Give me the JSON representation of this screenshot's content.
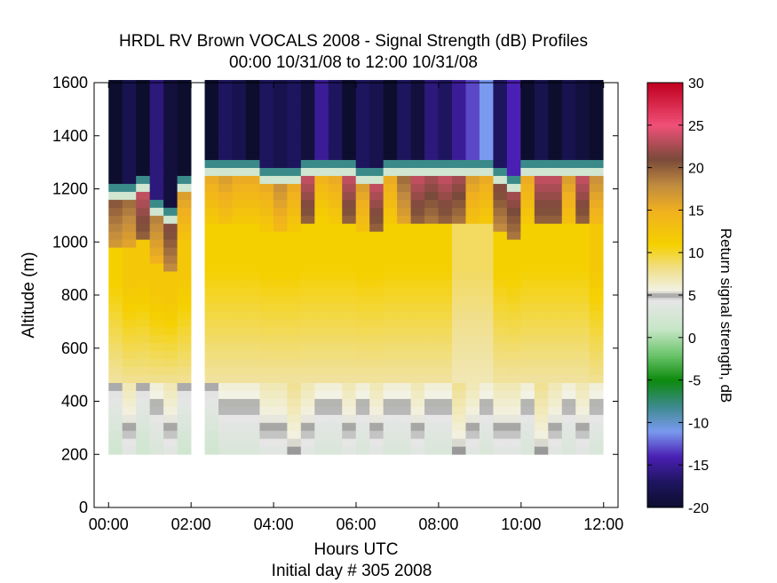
{
  "chart_data": {
    "type": "heatmap",
    "title": "HRDL RV Brown VOCALS 2008 - Signal Strength (dB) Profiles",
    "subtitle": "00:00 10/31/08 to 12:00 10/31/08",
    "xlabel": "Hours UTC",
    "xlabel2": "Initial day # 305  2008",
    "ylabel": "Altitude (m)",
    "colorbar_label": "Return signal strength, dB",
    "x_ticks": [
      "00:00",
      "02:00",
      "04:00",
      "06:00",
      "08:00",
      "10:00",
      "12:00"
    ],
    "x_tick_values": [
      0,
      2,
      4,
      6,
      8,
      10,
      12
    ],
    "xlim": [
      -0.35,
      12.35
    ],
    "y_ticks": [
      "0",
      "200",
      "400",
      "600",
      "800",
      "1000",
      "1200",
      "1400",
      "1600"
    ],
    "y_tick_values": [
      0,
      200,
      400,
      600,
      800,
      1000,
      1200,
      1400,
      1600
    ],
    "ylim": [
      0,
      1600
    ],
    "colorbar_ticks": [
      "30",
      "25",
      "20",
      "15",
      "10",
      "5",
      "0",
      "-5",
      "-10",
      "-15",
      "-20"
    ],
    "colorbar_tick_values": [
      30,
      25,
      20,
      15,
      10,
      5,
      0,
      -5,
      -10,
      -15,
      -20
    ],
    "clim": [
      -20,
      30
    ],
    "colormap": [
      [
        -20,
        "#0d0d2e"
      ],
      [
        -17,
        "#1e155f"
      ],
      [
        -14,
        "#4a1fb3"
      ],
      [
        -11,
        "#7a9af0"
      ],
      [
        -8,
        "#3b8a8a"
      ],
      [
        -5,
        "#0d8a0d"
      ],
      [
        -2,
        "#6cc46c"
      ],
      [
        1,
        "#c7e6c7"
      ],
      [
        4.5,
        "#e6e6e6"
      ],
      [
        5,
        "#999999"
      ],
      [
        5.5,
        "#f2f2e6"
      ],
      [
        8,
        "#f0e090"
      ],
      [
        11,
        "#f5d000"
      ],
      [
        15,
        "#f0b020"
      ],
      [
        18,
        "#c08a40"
      ],
      [
        21,
        "#7a4a3a"
      ],
      [
        25,
        "#f05078"
      ],
      [
        30,
        "#c00020"
      ]
    ],
    "x_start_hours": 0,
    "x_step_hours": 0.333,
    "y_start_m": 200,
    "y_step_m": 30,
    "gap_columns": [
      6
    ],
    "cloud_base_m": [
      1160,
      1160,
      1190,
      1100,
      1070,
      1190,
      1190,
      1250,
      1250,
      1250,
      1250,
      1220,
      1220,
      1220,
      1250,
      1250,
      1250,
      1250,
      1220,
      1220,
      1250,
      1250,
      1250,
      1250,
      1250,
      1250,
      1250,
      1250,
      1220,
      1190,
      1250,
      1250,
      1250,
      1250,
      1250,
      1250
    ],
    "cloud_value_db": [
      21,
      20,
      24,
      19,
      22,
      17,
      16,
      16,
      17,
      16,
      16,
      16,
      18,
      16,
      24,
      15,
      16,
      24,
      17,
      24,
      16,
      20,
      24,
      23,
      24,
      23,
      17,
      16,
      22,
      23,
      16,
      24,
      24,
      17,
      24,
      18
    ],
    "sub_cloud_db": [
      11,
      12,
      12,
      12,
      12,
      12,
      12,
      11,
      11,
      11,
      11,
      11,
      11,
      11,
      11,
      11,
      11,
      11,
      11,
      11,
      11,
      11,
      11,
      11,
      11,
      9,
      9,
      9,
      11,
      11,
      11,
      11,
      11,
      11,
      11,
      12
    ],
    "near_surface_db": [
      2,
      4,
      2,
      3,
      4,
      2,
      3,
      2,
      3,
      3,
      3,
      4,
      4,
      5,
      4,
      3,
      3,
      4,
      3,
      4,
      3,
      3,
      4,
      3,
      3,
      5,
      4,
      3,
      4,
      4,
      3,
      5,
      4,
      3,
      4,
      3
    ],
    "free_troposphere_db": [
      -19,
      -19,
      -19,
      -18,
      -19,
      -19,
      -19,
      -19,
      -19,
      -18,
      -18,
      -18,
      -17,
      -19,
      -19,
      -13,
      -18,
      -19,
      -19,
      -18,
      -19,
      -18,
      -18,
      -18,
      -17,
      -13,
      -14,
      -10,
      -19,
      -14,
      -20,
      -19,
      -19,
      -20,
      -19,
      -19
    ]
  }
}
